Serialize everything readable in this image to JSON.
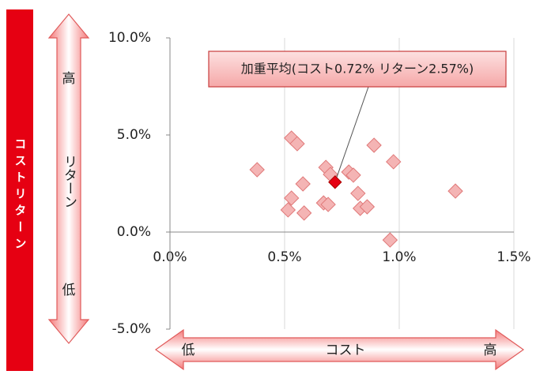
{
  "chart_data": {
    "type": "scatter",
    "side_label": "コストリターン",
    "y_arrow": {
      "high": "高",
      "label": "リターン",
      "low": "低"
    },
    "x_arrow": {
      "low": "低",
      "label": "コスト",
      "high": "高"
    },
    "xlim": [
      0,
      1.5
    ],
    "xticks": [
      {
        "value": 0,
        "label": "0.0%"
      },
      {
        "value": 0.5,
        "label": "0.5%"
      },
      {
        "value": 1.0,
        "label": "1.0%"
      },
      {
        "value": 1.5,
        "label": "1.5%"
      }
    ],
    "ylim": [
      -5,
      10
    ],
    "yticks": [
      {
        "value": -5,
        "label": "-5.0%"
      },
      {
        "value": 0,
        "label": "0.0%"
      },
      {
        "value": 5,
        "label": "5.0%"
      },
      {
        "value": 10,
        "label": "10.0%"
      }
    ],
    "grid": true,
    "points": {
      "color": "#f4b4b4",
      "x": [
        0.38,
        0.53,
        0.555,
        0.58,
        0.53,
        0.515,
        0.585,
        0.68,
        0.7,
        0.67,
        0.69,
        0.78,
        0.8,
        0.82,
        0.83,
        0.86,
        0.89,
        0.975,
        0.96,
        1.245
      ],
      "y": [
        3.21,
        4.84,
        4.55,
        2.48,
        1.75,
        1.14,
        0.98,
        3.33,
        2.97,
        1.5,
        1.42,
        3.09,
        2.93,
        1.99,
        1.22,
        1.3,
        4.47,
        3.62,
        -0.41,
        2.11
      ]
    },
    "highlight": {
      "x": 0.72,
      "y": 2.57,
      "color": "#e60012",
      "label": "加重平均(コスト0.72%  リターン2.57%)"
    }
  }
}
